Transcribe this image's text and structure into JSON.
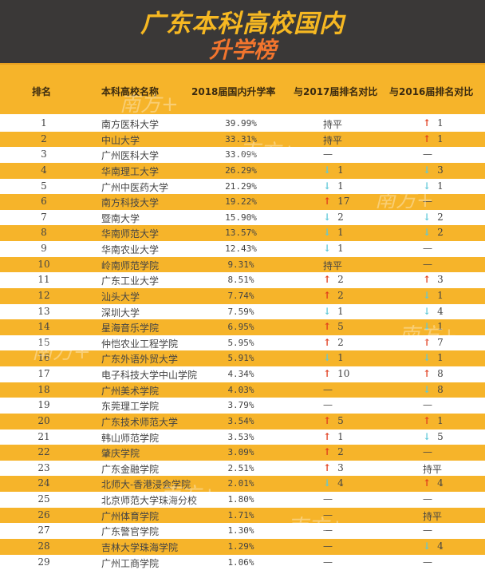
{
  "title_line1": "广东本科高校国内",
  "title_line2": "升学榜",
  "colors": {
    "banner": "#3a3837",
    "title1": "#f6b822",
    "title2": "#f2752e",
    "band": "#f6b42a",
    "up": "#e03a1a",
    "down": "#5fc8d8"
  },
  "headers": [
    "排名",
    "本科高校名称",
    "2018届国内升学率",
    "与2017届排名对比",
    "与2016届排名对比"
  ],
  "watermark": "南方+",
  "rows": [
    [
      "1",
      "南方医科大学",
      "39.99%",
      {
        "t": "持平"
      },
      {
        "d": "up",
        "n": "1"
      }
    ],
    [
      "2",
      "中山大学",
      "33.31%",
      {
        "t": "持平"
      },
      {
        "d": "up",
        "n": "1"
      }
    ],
    [
      "3",
      "广州医科大学",
      "33.09%",
      {
        "t": "—"
      },
      {
        "t": "—"
      }
    ],
    [
      "4",
      "华南理工大学",
      "26.29%",
      {
        "d": "down",
        "n": "1"
      },
      {
        "d": "down",
        "n": "3"
      }
    ],
    [
      "5",
      "广州中医药大学",
      "21.29%",
      {
        "d": "down",
        "n": "1"
      },
      {
        "d": "down",
        "n": "1"
      }
    ],
    [
      "6",
      "南方科技大学",
      "19.22%",
      {
        "d": "up",
        "n": "17"
      },
      {
        "t": "—"
      }
    ],
    [
      "7",
      "暨南大学",
      "15.90%",
      {
        "d": "down",
        "n": "2"
      },
      {
        "d": "down",
        "n": "2"
      }
    ],
    [
      "8",
      "华南师范大学",
      "13.57%",
      {
        "d": "down",
        "n": "1"
      },
      {
        "d": "down",
        "n": "2"
      }
    ],
    [
      "9",
      "华南农业大学",
      "12.43%",
      {
        "d": "down",
        "n": "1"
      },
      {
        "t": "—"
      }
    ],
    [
      "10",
      "岭南师范学院",
      "9.31%",
      {
        "t": "持平"
      },
      {
        "t": "—"
      }
    ],
    [
      "11",
      "广东工业大学",
      "8.51%",
      {
        "d": "up",
        "n": "2"
      },
      {
        "d": "up",
        "n": "3"
      }
    ],
    [
      "12",
      "汕头大学",
      "7.74%",
      {
        "d": "up",
        "n": "2"
      },
      {
        "d": "down",
        "n": "1"
      }
    ],
    [
      "13",
      "深圳大学",
      "7.59%",
      {
        "d": "down",
        "n": "1"
      },
      {
        "d": "down",
        "n": "4"
      }
    ],
    [
      "14",
      "星海音乐学院",
      "6.95%",
      {
        "d": "up",
        "n": "5"
      },
      {
        "d": "down",
        "n": "1"
      }
    ],
    [
      "15",
      "仲恺农业工程学院",
      "5.95%",
      {
        "d": "up",
        "n": "2"
      },
      {
        "d": "up",
        "n": "7"
      }
    ],
    [
      "16",
      "广东外语外贸大学",
      "5.91%",
      {
        "d": "down",
        "n": "1"
      },
      {
        "d": "down",
        "n": "1"
      }
    ],
    [
      "17",
      "电子科技大学中山学院",
      "4.34%",
      {
        "d": "up",
        "n": "10"
      },
      {
        "d": "up",
        "n": "8"
      }
    ],
    [
      "18",
      "广州美术学院",
      "4.03%",
      {
        "t": "—"
      },
      {
        "d": "down",
        "n": "8"
      }
    ],
    [
      "19",
      "东莞理工学院",
      "3.79%",
      {
        "t": "—"
      },
      {
        "t": "—"
      }
    ],
    [
      "20",
      "广东技术师范大学",
      "3.54%",
      {
        "d": "up",
        "n": "5"
      },
      {
        "d": "up",
        "n": "1"
      }
    ],
    [
      "21",
      "韩山师范学院",
      "3.53%",
      {
        "d": "up",
        "n": "1"
      },
      {
        "d": "down",
        "n": "5"
      }
    ],
    [
      "22",
      "肇庆学院",
      "3.09%",
      {
        "d": "up",
        "n": "2"
      },
      {
        "t": "—"
      }
    ],
    [
      "23",
      "广东金融学院",
      "2.51%",
      {
        "d": "up",
        "n": "3"
      },
      {
        "t": "持平"
      }
    ],
    [
      "24",
      "北师大-香港浸会学院",
      "2.01%",
      {
        "d": "down",
        "n": "4"
      },
      {
        "d": "up",
        "n": "4"
      }
    ],
    [
      "25",
      "北京师范大学珠海分校",
      "1.80%",
      {
        "t": "—"
      },
      {
        "t": "—"
      }
    ],
    [
      "26",
      "广州体育学院",
      "1.71%",
      {
        "t": "—"
      },
      {
        "t": "持平"
      }
    ],
    [
      "27",
      "广东警官学院",
      "1.30%",
      {
        "t": "—"
      },
      {
        "t": "—"
      }
    ],
    [
      "28",
      "吉林大学珠海学院",
      "1.29%",
      {
        "t": "—"
      },
      {
        "d": "down",
        "n": "4"
      }
    ],
    [
      "29",
      "广州工商学院",
      "1.06%",
      {
        "t": "—"
      },
      {
        "t": "—"
      }
    ]
  ]
}
